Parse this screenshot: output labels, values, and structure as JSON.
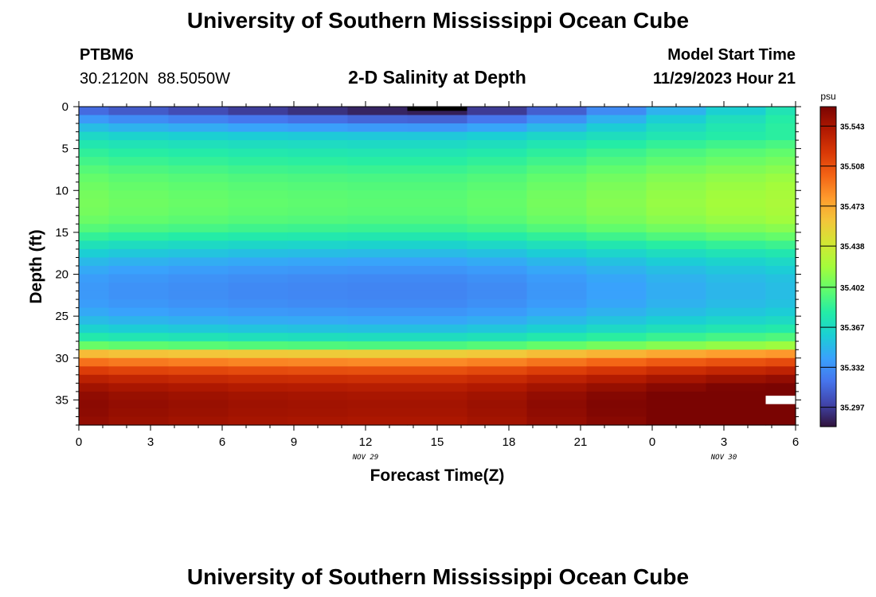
{
  "page": {
    "title_top": "University of Southern Mississippi Ocean Cube",
    "title_bottom": "University of Southern Mississippi Ocean Cube"
  },
  "station": {
    "id": "PTBM6",
    "coords": "30.2120N  88.5050W"
  },
  "model": {
    "start_label": "Model Start Time",
    "start_value": "11/29/2023 Hour 21"
  },
  "chart_data": {
    "type": "heatmap",
    "title": "2-D Salinity at Depth",
    "xlabel": "Forecast Time(Z)",
    "ylabel": "Depth (ft)",
    "x_tick_labels": [
      "0",
      "3",
      "6",
      "9",
      "12",
      "15",
      "18",
      "21",
      "0",
      "3",
      "6"
    ],
    "x_tick_hours": [
      0,
      3,
      6,
      9,
      12,
      15,
      18,
      21,
      24,
      27,
      30
    ],
    "x_date_labels": [
      {
        "text": "NOV 29",
        "hour": 12
      },
      {
        "text": "NOV 30",
        "hour": 27
      }
    ],
    "x_range": [
      0,
      30
    ],
    "y_ticks": [
      0,
      5,
      10,
      15,
      20,
      25,
      30,
      35
    ],
    "y_range": [
      0,
      38
    ],
    "y_inverted": true,
    "columns_start_hours": [
      0,
      1.25,
      3.75,
      6.25,
      8.75,
      11.25,
      13.75,
      16.25,
      18.75,
      21.25,
      23.75,
      26.25,
      28.75
    ],
    "columns_end_hour": 30,
    "depth_levels": [
      0,
      1,
      2,
      3,
      4,
      5,
      6,
      7,
      8,
      9,
      10,
      11,
      12,
      13,
      14,
      15,
      16,
      17,
      18,
      19,
      20,
      21,
      22,
      23,
      24,
      25,
      26,
      27,
      28,
      29,
      30,
      31,
      32,
      33,
      34,
      35,
      36,
      37
    ],
    "base_profile": [
      35.316,
      35.336,
      35.352,
      35.366,
      35.376,
      35.384,
      35.39,
      35.396,
      35.401,
      35.404,
      35.406,
      35.407,
      35.406,
      35.403,
      35.396,
      35.385,
      35.372,
      35.36,
      35.35,
      35.343,
      35.338,
      35.336,
      35.336,
      35.338,
      35.343,
      35.351,
      35.362,
      35.378,
      35.402,
      35.465,
      35.495,
      35.518,
      35.535,
      35.546,
      35.552,
      35.554,
      35.553,
      35.551
    ],
    "column_offsets": [
      0.0,
      -0.003,
      -0.005,
      -0.007,
      -0.008,
      -0.009,
      -0.009,
      -0.006,
      -0.001,
      0.004,
      0.009,
      0.013,
      0.016
    ],
    "surface_offsets": [
      0.0,
      -0.004,
      -0.008,
      -0.012,
      -0.016,
      -0.02,
      -0.022,
      -0.014,
      -0.004,
      0.01,
      0.022,
      0.032,
      0.042
    ],
    "missing_cells": [
      {
        "hour_start": 13.75,
        "hour_end": 16.25,
        "depth_start": 0,
        "depth_end": 0.5
      },
      {
        "hour_start": 28.75,
        "hour_end": 30,
        "depth_start": 34.5,
        "depth_end": 35.5
      }
    ],
    "missing_color": "#ffffff",
    "colorbar": {
      "unit": "psu",
      "min": 35.28,
      "max": 35.56,
      "labels": [
        "35.543",
        "35.508",
        "35.473",
        "35.438",
        "35.402",
        "35.367",
        "35.332",
        "35.297"
      ],
      "colors": [
        "#30123b",
        "#4145ab",
        "#4675ed",
        "#39a2fc",
        "#1bcfd4",
        "#24eca6",
        "#61fc6c",
        "#a4fc3b",
        "#d1e834",
        "#f3c63a",
        "#fe9b2d",
        "#f36315",
        "#d93806",
        "#b11901",
        "#7a0402"
      ]
    }
  }
}
